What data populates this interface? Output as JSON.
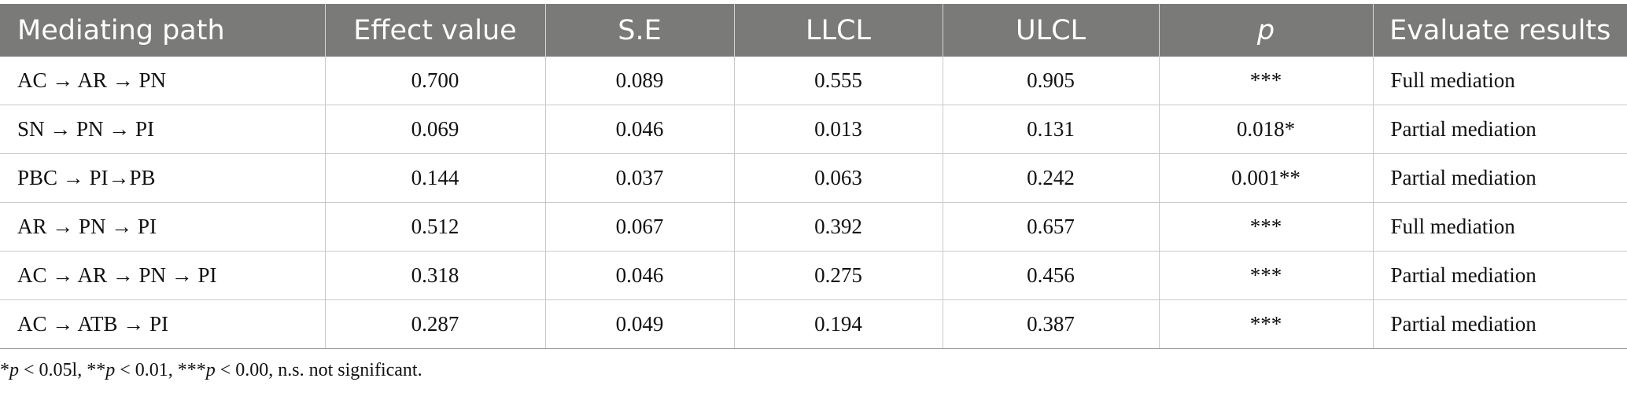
{
  "table": {
    "headers": [
      "Mediating path",
      "Effect value",
      "S.E",
      "LLCL",
      "ULCL",
      "p",
      "Evaluate results"
    ],
    "rows": [
      [
        "AC → AR → PN",
        "0.700",
        "0.089",
        "0.555",
        "0.905",
        "***",
        "Full mediation"
      ],
      [
        "SN → PN → PI",
        "0.069",
        "0.046",
        "0.013",
        "0.131",
        "0.018*",
        "Partial mediation"
      ],
      [
        "PBC → PI→PB",
        "0.144",
        "0.037",
        "0.063",
        "0.242",
        "0.001**",
        "Partial mediation"
      ],
      [
        "AR → PN → PI",
        "0.512",
        "0.067",
        "0.392",
        "0.657",
        "***",
        "Full mediation"
      ],
      [
        "AC → AR → PN → PI",
        "0.318",
        "0.046",
        "0.275",
        "0.456",
        "***",
        "Partial mediation"
      ],
      [
        "AC → ATB → PI",
        "0.287",
        "0.049",
        "0.194",
        "0.387",
        "***",
        "Partial mediation"
      ]
    ]
  },
  "footnote": {
    "p1_star": "*",
    "p1_var": "p",
    "p1_rest": " < 0.05l, **",
    "p2_var": "p",
    "p2_rest": " < 0.01, ***",
    "p3_var": "p",
    "p3_rest": " < 0.00, n.s. not significant."
  },
  "colors": {
    "header_bg": "#7a7a79",
    "header_text": "#ffffff",
    "grid": "#c9c9c9"
  }
}
